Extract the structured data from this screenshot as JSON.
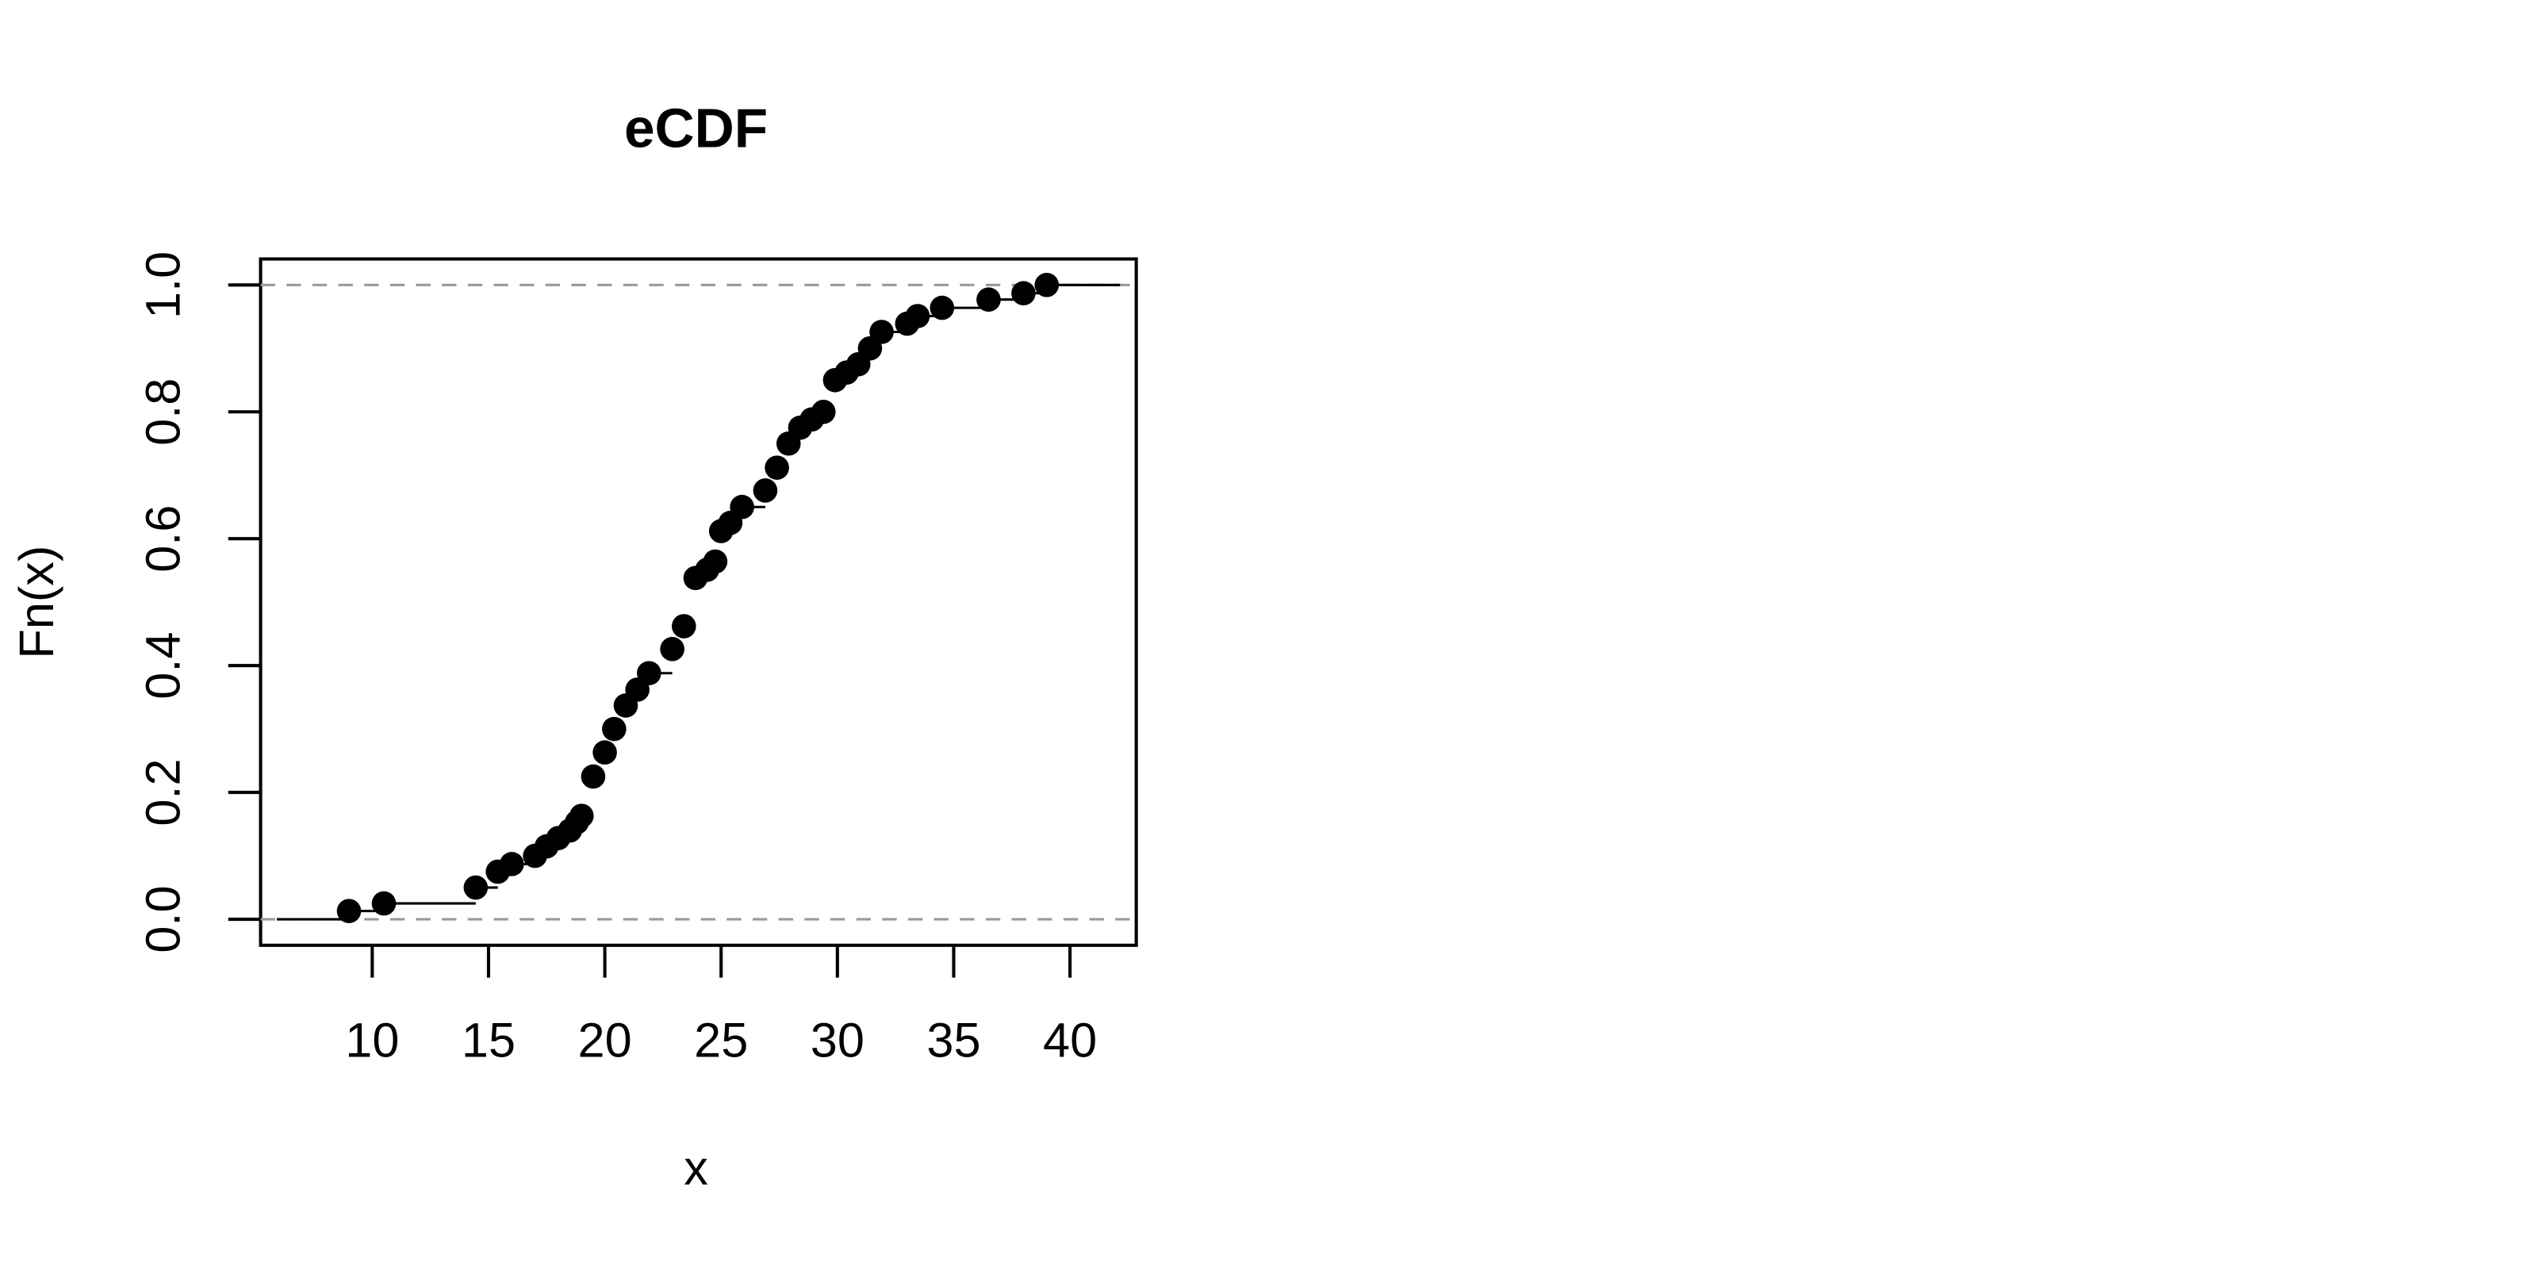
{
  "chart_data": {
    "type": "ecdf",
    "title": "eCDF",
    "x_label": "x",
    "y_label": "Fn(x)",
    "x": [
      9,
      10.5,
      14.45,
      15.4,
      16,
      17,
      17.5,
      18,
      18.5,
      18.8,
      19,
      19.5,
      20,
      20.4,
      20.9,
      21.4,
      21.9,
      22.9,
      23.4,
      23.9,
      24.4,
      24.75,
      25,
      25.4,
      25.9,
      26.9,
      27.4,
      27.9,
      28.4,
      28.9,
      29.4,
      29.9,
      30.4,
      30.9,
      31.4,
      31.9,
      33,
      33.45,
      34.5,
      36.5,
      38,
      39
    ],
    "values": [
      0.013,
      0.025,
      0.05,
      0.075,
      0.087,
      0.1,
      0.115,
      0.128,
      0.14,
      0.153,
      0.163,
      0.225,
      0.263,
      0.3,
      0.337,
      0.362,
      0.388,
      0.426,
      0.462,
      0.538,
      0.551,
      0.564,
      0.612,
      0.625,
      0.65,
      0.676,
      0.712,
      0.75,
      0.775,
      0.788,
      0.8,
      0.85,
      0.862,
      0.875,
      0.9,
      0.926,
      0.939,
      0.951,
      0.964,
      0.977,
      0.987,
      1.0
    ],
    "color": "#000000",
    "xlim": [
      5.2,
      42.85
    ],
    "ylim": [
      -0.041,
      1.041
    ],
    "xticks": [
      10,
      15,
      20,
      25,
      30,
      35,
      40
    ],
    "yticks": [
      {
        "value": 0,
        "label": "0.0"
      },
      {
        "value": 0.2,
        "label": "0.2"
      },
      {
        "value": 0.4,
        "label": "0.4"
      },
      {
        "value": 0.6,
        "label": "0.6"
      },
      {
        "value": 0.8,
        "label": "0.8"
      },
      {
        "value": 1,
        "label": "1.0"
      }
    ],
    "reference_lines": [
      0,
      1
    ]
  }
}
